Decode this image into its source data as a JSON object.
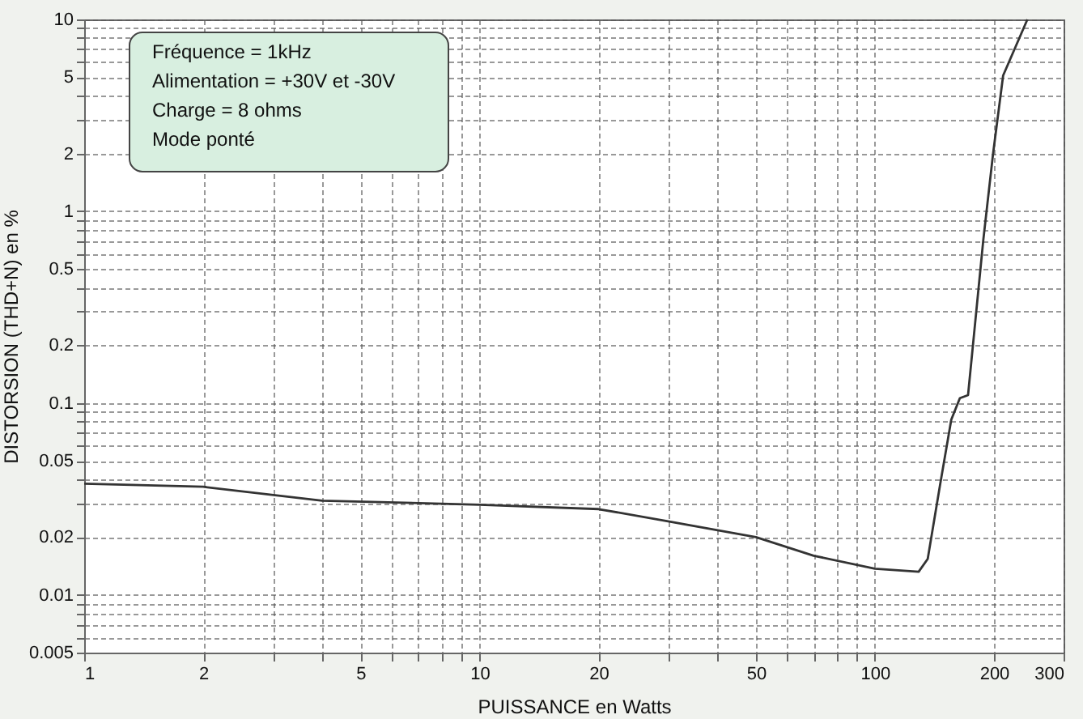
{
  "chart_data": {
    "type": "line",
    "xlabel": "PUISSANCE en Watts",
    "ylabel": "DISTORSION (THD+N) en %",
    "annotations": [
      "Fréquence = 1kHz",
      "Alimentation  = +30V et -30V",
      "Charge = 8 ohms",
      "Mode ponté"
    ],
    "x": [
      1,
      2,
      4,
      10,
      20,
      30,
      50,
      70,
      100,
      129,
      136,
      146,
      156,
      164,
      172,
      188,
      199,
      211,
      243
    ],
    "series": [
      {
        "color": "#333333",
        "values": [
          0.038,
          0.0366,
          0.031,
          0.0295,
          0.028,
          0.0242,
          0.02,
          0.016,
          0.0137,
          0.0132,
          0.0154,
          0.037,
          0.082,
          0.106,
          0.11,
          0.71,
          2.0,
          5.1,
          10
        ]
      }
    ],
    "log": "xy",
    "xlim": [
      1,
      300
    ],
    "ylim": [
      0.005,
      10
    ],
    "xticks": [
      1,
      2,
      {
        "value": 3,
        "label": null
      },
      {
        "value": 4,
        "label": null
      },
      5,
      {
        "value": 6,
        "label": null
      },
      {
        "value": 7,
        "label": null
      },
      {
        "value": 8,
        "label": null
      },
      {
        "value": 9,
        "label": null
      },
      10,
      20,
      {
        "value": 30,
        "label": null
      },
      {
        "value": 40,
        "label": null
      },
      50,
      {
        "value": 60,
        "label": null
      },
      {
        "value": 70,
        "label": null
      },
      {
        "value": 80,
        "label": null
      },
      {
        "value": 90,
        "label": null
      },
      100,
      200,
      300
    ],
    "yticks": [
      0.005,
      {
        "value": 0.006,
        "label": null
      },
      {
        "value": 0.007,
        "label": null
      },
      {
        "value": 0.008,
        "label": null
      },
      {
        "value": 0.009,
        "label": null
      },
      0.01,
      0.02,
      {
        "value": 0.03,
        "label": null
      },
      {
        "value": 0.04,
        "label": null
      },
      0.05,
      {
        "value": 0.06,
        "label": null
      },
      {
        "value": 0.07,
        "label": null
      },
      {
        "value": 0.08,
        "label": null
      },
      {
        "value": 0.09,
        "label": null
      },
      0.1,
      0.2,
      {
        "value": 0.3,
        "label": null
      },
      {
        "value": 0.4,
        "label": null
      },
      0.5,
      {
        "value": 0.6,
        "label": null
      },
      {
        "value": 0.7,
        "label": null
      },
      {
        "value": 0.8,
        "label": null
      },
      {
        "value": 0.9,
        "label": null
      },
      1,
      2,
      {
        "value": 3,
        "label": null
      },
      {
        "value": 4,
        "label": null
      },
      5,
      {
        "value": 6,
        "label": null
      },
      {
        "value": 7,
        "label": null
      },
      {
        "value": 8,
        "label": null
      },
      {
        "value": 9,
        "label": null
      },
      10
    ],
    "grid": true,
    "line_style": "solid",
    "marker": "none"
  }
}
